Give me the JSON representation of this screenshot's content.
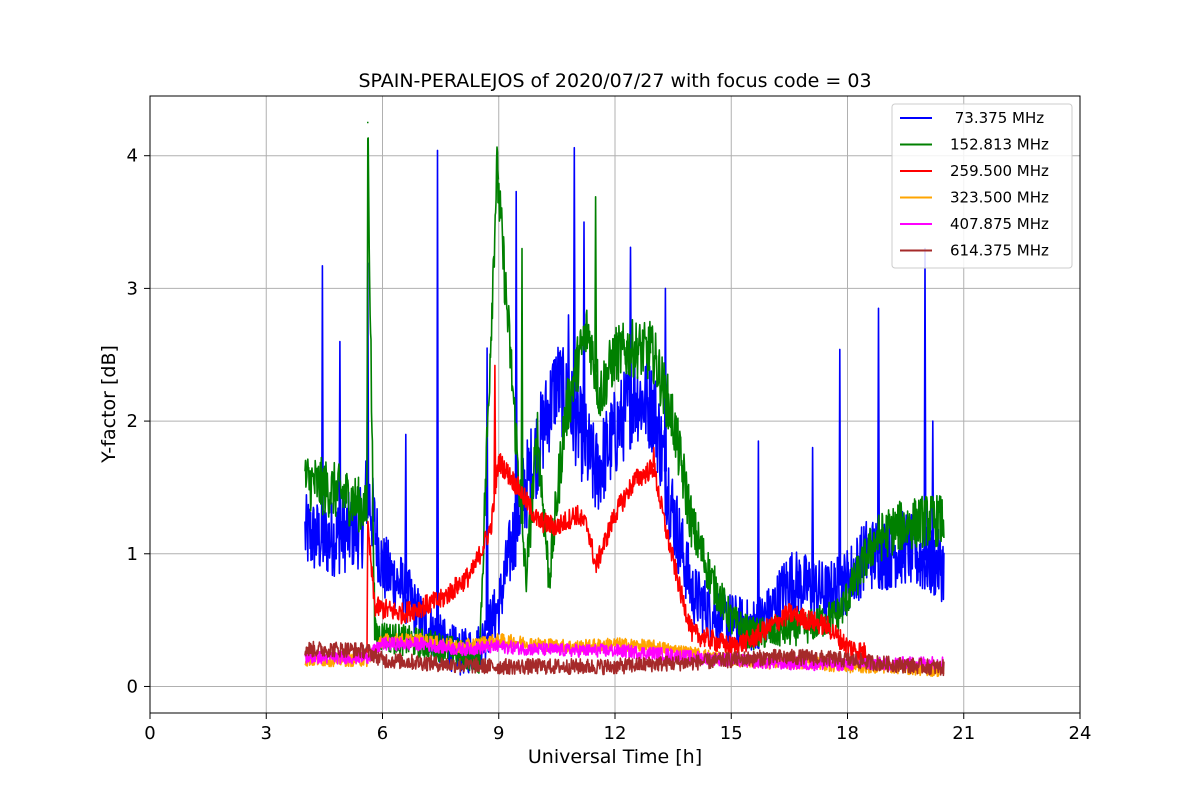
{
  "chart_data": {
    "type": "line",
    "title": "SPAIN-PERALEJOS of 2020/07/27 with focus code = 03",
    "xlabel": "Universal Time [h]",
    "ylabel": "Y-factor [dB]",
    "xlim": [
      0,
      24
    ],
    "ylim": [
      -0.2,
      4.45
    ],
    "xticks": [
      0,
      3,
      6,
      9,
      12,
      15,
      18,
      21,
      24
    ],
    "xtick_labels": [
      "0",
      "3",
      "6",
      "9",
      "12",
      "15",
      "18",
      "21",
      "24"
    ],
    "yticks": [
      0,
      1,
      2,
      3,
      4
    ],
    "ytick_labels": [
      "0",
      "1",
      "2",
      "3",
      "4"
    ],
    "grid": true,
    "legend_position": "top-right",
    "series": [
      {
        "name": " 73.375 MHz",
        "color": "#0000ff",
        "x": [
          4.0,
          4.5,
          5.0,
          5.5,
          5.6,
          6.0,
          6.5,
          7.0,
          7.5,
          8.0,
          8.5,
          9.0,
          9.5,
          10.0,
          10.5,
          11.0,
          11.5,
          12.0,
          12.5,
          13.0,
          13.5,
          14.0,
          14.5,
          15.0,
          15.5,
          16.0,
          16.5,
          17.0,
          17.5,
          18.0,
          18.5,
          19.0,
          19.5,
          20.0,
          20.5
        ],
        "y": [
          1.15,
          1.1,
          1.15,
          1.2,
          1.5,
          0.9,
          0.75,
          0.5,
          0.35,
          0.25,
          0.3,
          0.6,
          1.3,
          1.8,
          2.3,
          2.0,
          1.6,
          1.9,
          2.2,
          2.1,
          1.3,
          0.7,
          0.55,
          0.5,
          0.45,
          0.55,
          0.8,
          0.75,
          0.7,
          0.8,
          1.0,
          1.0,
          1.05,
          0.95,
          0.9
        ],
        "spikes": [
          [
            4.45,
            3.17
          ],
          [
            4.9,
            2.6
          ],
          [
            5.62,
            3.19
          ],
          [
            6.6,
            1.9
          ],
          [
            7.42,
            4.04
          ],
          [
            8.7,
            2.55
          ],
          [
            9.45,
            3.73
          ],
          [
            10.8,
            2.8
          ],
          [
            10.95,
            4.06
          ],
          [
            11.2,
            3.5
          ],
          [
            12.4,
            3.31
          ],
          [
            13.3,
            3.0
          ],
          [
            15.7,
            1.85
          ],
          [
            17.1,
            1.8
          ],
          [
            17.8,
            2.54
          ],
          [
            18.8,
            2.85
          ],
          [
            20.0,
            3.3
          ],
          [
            20.2,
            2.0
          ]
        ]
      },
      {
        "name": "152.813 MHz",
        "color": "#008000",
        "x": [
          4.0,
          4.5,
          5.0,
          5.5,
          5.6,
          5.62,
          5.8,
          6.5,
          7.5,
          8.5,
          8.8,
          8.95,
          9.3,
          9.7,
          10.0,
          10.3,
          10.7,
          11.0,
          11.3,
          11.6,
          12.0,
          12.5,
          13.0,
          13.5,
          14.0,
          14.5,
          15.0,
          15.5,
          16.0,
          17.0,
          17.8,
          18.2,
          18.7,
          19.3,
          20.0,
          20.5
        ],
        "y": [
          1.55,
          1.5,
          1.45,
          1.35,
          1.3,
          4.25,
          0.4,
          0.35,
          0.3,
          0.2,
          2.7,
          3.9,
          2.5,
          0.8,
          1.9,
          0.8,
          2.0,
          2.4,
          2.7,
          2.2,
          2.5,
          2.55,
          2.5,
          2.0,
          1.2,
          0.8,
          0.5,
          0.4,
          0.4,
          0.45,
          0.55,
          0.8,
          1.1,
          1.2,
          1.25,
          1.25
        ],
        "spikes": [
          [
            5.62,
            4.25
          ],
          [
            8.97,
            3.9
          ],
          [
            11.5,
            3.69
          ],
          [
            9.6,
            3.3
          ],
          [
            12.9,
            2.75
          ]
        ]
      },
      {
        "name": "259.500 MHz",
        "color": "#ff0000",
        "x": [
          5.6,
          5.62,
          5.8,
          6.5,
          7.5,
          8.3,
          8.8,
          9.0,
          9.5,
          10.0,
          10.5,
          11.0,
          11.3,
          11.5,
          12.0,
          12.5,
          13.0,
          13.3,
          13.7,
          14.0,
          14.5,
          15.0,
          15.5,
          16.0,
          16.5,
          17.0,
          17.5,
          18.0,
          18.5
        ],
        "y": [
          0.3,
          1.2,
          0.6,
          0.55,
          0.65,
          0.85,
          1.2,
          1.7,
          1.5,
          1.25,
          1.2,
          1.3,
          1.2,
          0.9,
          1.3,
          1.55,
          1.65,
          1.2,
          0.7,
          0.4,
          0.35,
          0.3,
          0.35,
          0.45,
          0.55,
          0.5,
          0.45,
          0.3,
          0.25
        ],
        "spikes": [
          [
            8.9,
            2.42
          ],
          [
            13.0,
            1.8
          ]
        ]
      },
      {
        "name": "323.500 MHz",
        "color": "#ffa500",
        "x": [
          4.0,
          5.0,
          5.6,
          6.0,
          7.0,
          8.0,
          9.0,
          10.0,
          11.0,
          12.0,
          13.0,
          14.0,
          15.0,
          16.0,
          17.0,
          18.0,
          19.0,
          20.0,
          20.5
        ],
        "y": [
          0.2,
          0.2,
          0.2,
          0.35,
          0.35,
          0.3,
          0.35,
          0.32,
          0.3,
          0.32,
          0.3,
          0.25,
          0.2,
          0.18,
          0.18,
          0.15,
          0.15,
          0.13,
          0.12
        ],
        "spikes": []
      },
      {
        "name": "407.875 MHz",
        "color": "#ff00ff",
        "x": [
          4.0,
          5.0,
          5.6,
          6.0,
          7.0,
          8.0,
          9.0,
          10.0,
          11.0,
          12.0,
          13.0,
          14.0,
          15.0,
          16.0,
          17.0,
          18.0,
          19.0,
          20.0,
          20.5
        ],
        "y": [
          0.22,
          0.22,
          0.22,
          0.32,
          0.32,
          0.28,
          0.3,
          0.28,
          0.27,
          0.27,
          0.25,
          0.22,
          0.2,
          0.18,
          0.17,
          0.17,
          0.17,
          0.18,
          0.18
        ],
        "spikes": []
      },
      {
        "name": "614.375 MHz",
        "color": "#a52a2a",
        "x": [
          4.0,
          5.0,
          5.6,
          6.0,
          7.0,
          8.0,
          9.0,
          10.0,
          11.0,
          12.0,
          13.0,
          14.0,
          15.0,
          16.0,
          17.0,
          18.0,
          19.0,
          20.0,
          20.5
        ],
        "y": [
          0.28,
          0.28,
          0.27,
          0.2,
          0.18,
          0.16,
          0.15,
          0.15,
          0.15,
          0.15,
          0.17,
          0.18,
          0.2,
          0.22,
          0.22,
          0.2,
          0.17,
          0.15,
          0.14
        ],
        "spikes": []
      }
    ]
  }
}
